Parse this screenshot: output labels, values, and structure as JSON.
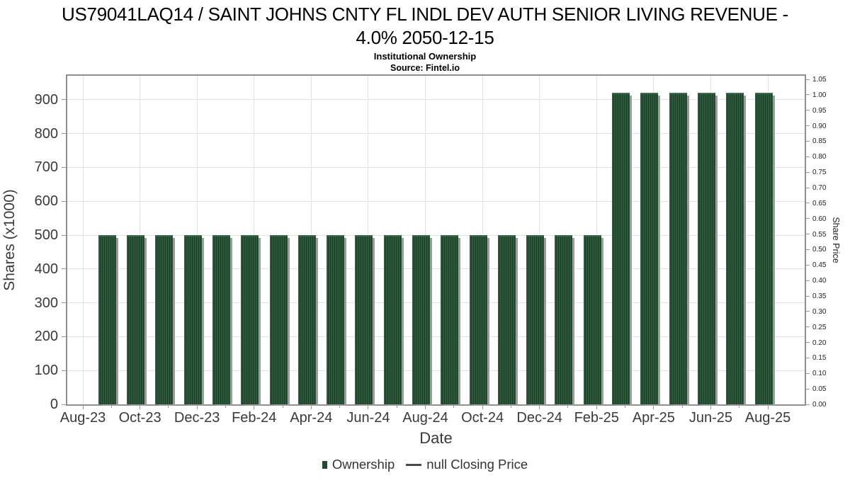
{
  "header": {
    "title_line1": "US79041LAQ14 / SAINT JOHNS CNTY FL INDL DEV AUTH SENIOR LIVING REVENUE -",
    "title_line2": "4.0% 2050-12-15",
    "subtitle": "Institutional Ownership",
    "source": "Source: Fintel.io"
  },
  "legend": {
    "ownership_label": "Ownership",
    "price_label": "null Closing Price"
  },
  "chart_data": {
    "type": "bar",
    "title": "Institutional Ownership",
    "xlabel": "Date",
    "ylabel": "Shares (x1000)",
    "y2label": "Share Price",
    "categories": [
      "Sep-23",
      "Oct-23",
      "Nov-23",
      "Dec-23",
      "Jan-24",
      "Feb-24",
      "Mar-24",
      "Apr-24",
      "May-24",
      "Jun-24",
      "Jul-24",
      "Aug-24",
      "Sep-24",
      "Oct-24",
      "Nov-24",
      "Dec-24",
      "Jan-25",
      "Feb-25",
      "Mar-25",
      "Apr-25",
      "May-25",
      "Jun-25",
      "Jul-25",
      "Aug-25"
    ],
    "series": [
      {
        "name": "Ownership",
        "axis": "left",
        "values": [
          500,
          500,
          500,
          500,
          500,
          500,
          500,
          500,
          500,
          500,
          500,
          500,
          500,
          500,
          500,
          500,
          500,
          500,
          920,
          920,
          920,
          920,
          920,
          920
        ]
      },
      {
        "name": "null Closing Price",
        "axis": "right",
        "values": []
      }
    ],
    "x_axis": {
      "label": "Date",
      "month_positions": [
        "Aug-23",
        "Sep-23",
        "Oct-23",
        "Nov-23",
        "Dec-23",
        "Jan-24",
        "Feb-24",
        "Mar-24",
        "Apr-24",
        "May-24",
        "Jun-24",
        "Jul-24",
        "Aug-24",
        "Sep-24",
        "Oct-24",
        "Nov-24",
        "Dec-24",
        "Jan-25",
        "Feb-25",
        "Mar-25",
        "Apr-25",
        "May-25",
        "Jun-25",
        "Jul-25",
        "Aug-25"
      ],
      "tick_labels": [
        "Aug-23",
        "Oct-23",
        "Dec-23",
        "Feb-24",
        "Apr-24",
        "Jun-24",
        "Aug-24",
        "Oct-24",
        "Dec-24",
        "Feb-25",
        "Apr-25",
        "Jun-25",
        "Aug-25"
      ]
    },
    "left_axis": {
      "label": "Shares (x1000)",
      "tick_values": [
        0,
        100,
        200,
        300,
        400,
        500,
        600,
        700,
        800,
        900
      ],
      "range": [
        0,
        971
      ]
    },
    "right_axis": {
      "label": "Share Price",
      "tick_labels": [
        "0.00",
        "0.05",
        "0.10",
        "0.15",
        "0.20",
        "0.25",
        "0.30",
        "0.35",
        "0.40",
        "0.45",
        "0.50",
        "0.55",
        "0.60",
        "0.65",
        "0.70",
        "0.75",
        "0.80",
        "0.85",
        "0.90",
        "0.95",
        "1.00",
        "1.05"
      ],
      "range": [
        0,
        1.0615
      ]
    },
    "grid": true,
    "legend_position": "bottom",
    "colors": {
      "bar": "#2e5a3c",
      "bar_stripe": "#1a3b25",
      "bar_shadow": "#9c9c9c",
      "legend_swatch": "#1e4a2d",
      "grid": "#e3e3e3",
      "plot_border": "#8f8f8f",
      "text": "#3a3a3a"
    }
  }
}
